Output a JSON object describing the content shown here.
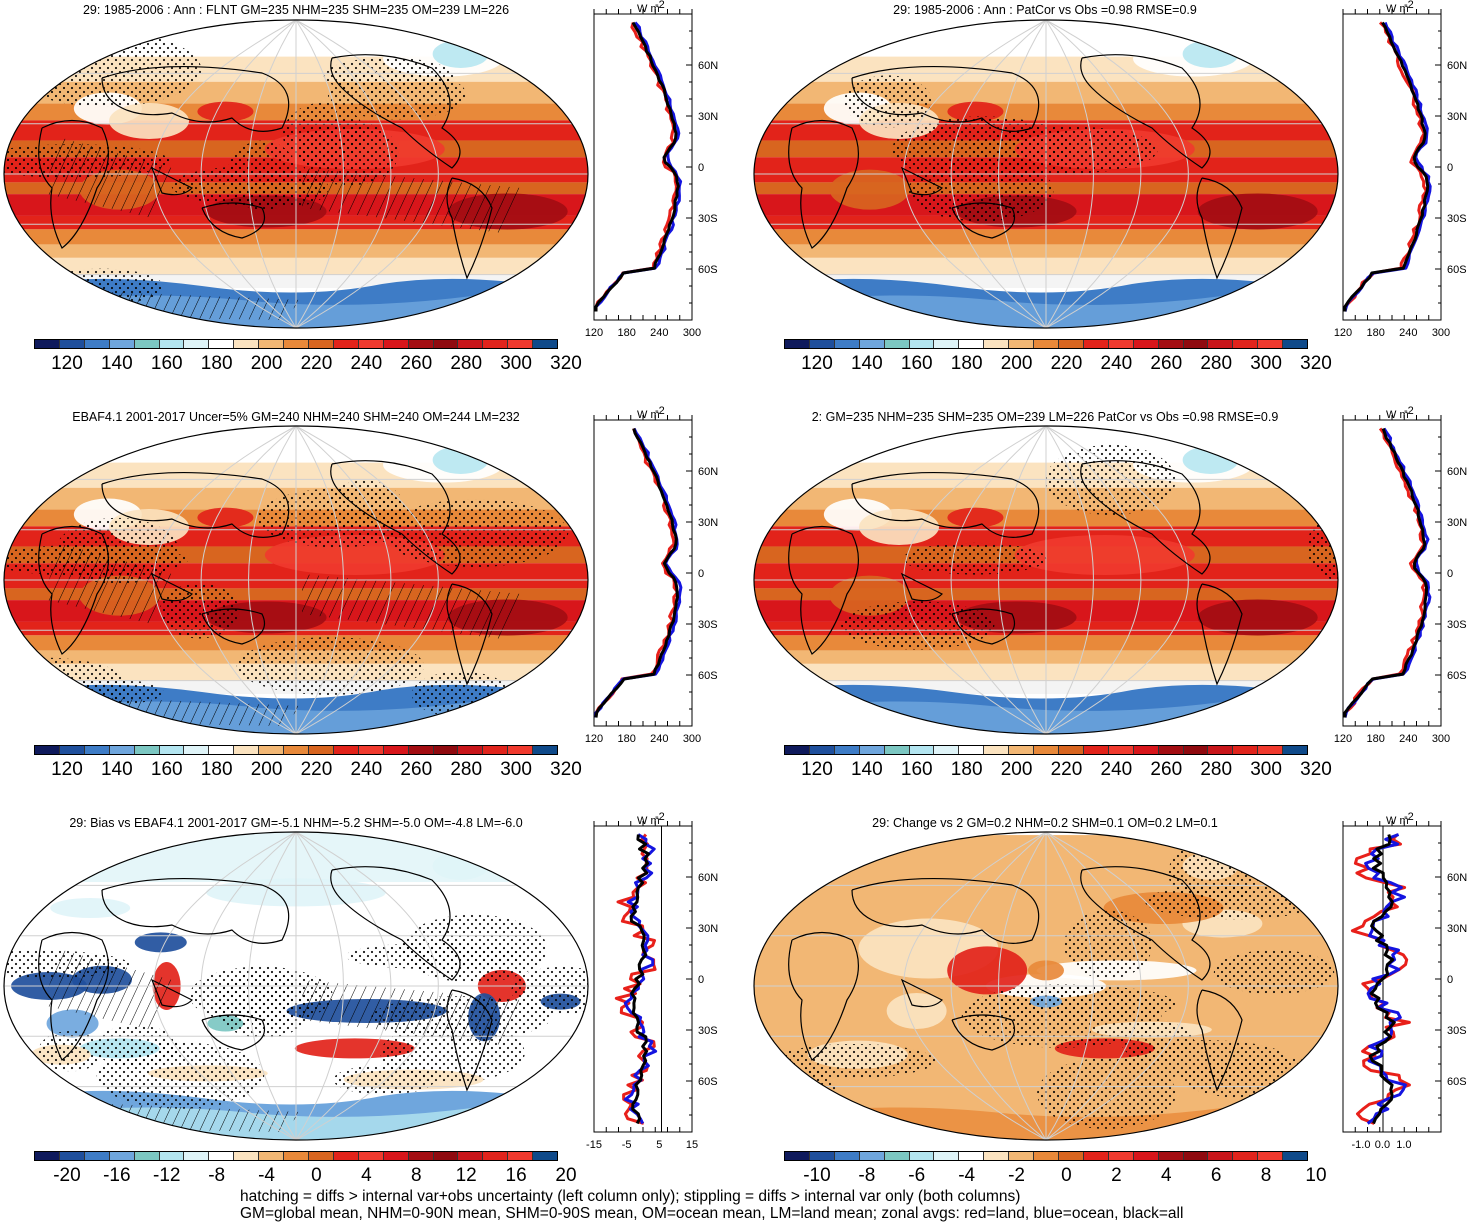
{
  "panels": [
    {
      "id": "p1",
      "title": "29: 1985-2006 : Ann : FLNT GM=235 NHM=235 SHM=235 OM=239 LM=226",
      "field": "absolute",
      "hatch": true
    },
    {
      "id": "p2",
      "title": "29: 1985-2006 : Ann : PatCor vs Obs =0.98 RMSE=0.9",
      "field": "absolute",
      "hatch": false
    },
    {
      "id": "p3",
      "title": "EBAF4.1 2001-2017 Uncer=5% GM=240 NHM=240 SHM=240 OM=244 LM=232",
      "field": "absolute",
      "hatch": true
    },
    {
      "id": "p4",
      "title": "2: GM=235 NHM=235 SHM=235 OM=239 LM=226 PatCor vs Obs =0.98 RMSE=0.9",
      "field": "absolute",
      "hatch": false
    },
    {
      "id": "p5",
      "title": "29: Bias vs EBAF4.1 2001-2017 GM=-5.1 NHM=-5.2 SHM=-5.0 OM=-4.8 LM=-6.0",
      "field": "bias",
      "hatch": true
    },
    {
      "id": "p6",
      "title": "29: Change vs 2 GM=0.2 NHM=0.2 SHM=0.1 OM=0.2 LM=0.1",
      "field": "change",
      "hatch": false
    }
  ],
  "zonal": {
    "units": "W m",
    "units_sup": "-2",
    "lat_labels": [
      "60N",
      "30N",
      "0",
      "30S",
      "60S"
    ],
    "abs_xticks": [
      "120",
      "180",
      "240",
      "300"
    ],
    "bias_xticks": [
      "-15",
      "-5",
      "5",
      "15"
    ],
    "change_xticks": [
      "-1.0",
      "0.0",
      "1.0"
    ]
  },
  "colorbars": {
    "absolute": {
      "labels": [
        "120",
        "140",
        "160",
        "180",
        "200",
        "220",
        "240",
        "260",
        "280",
        "300",
        "320"
      ],
      "colors": [
        "#0f1a5c",
        "#1f4f9c",
        "#3e7cc6",
        "#6fa6dd",
        "#7cc7c2",
        "#b3e5f0",
        "#dff4f8",
        "#ffffff",
        "#fbe3c0",
        "#f2b774",
        "#e8893a",
        "#d8651f",
        "#e2231a",
        "#f03a2e",
        "#d8161b",
        "#a30d12",
        "#8f0a0f",
        "#c8151a",
        "#e0241c",
        "#f0392d",
        "#0f4a8a"
      ]
    },
    "bias": {
      "labels": [
        "-20",
        "-16",
        "-12",
        "-8",
        "-4",
        "0",
        "4",
        "8",
        "12",
        "16",
        "20"
      ],
      "colors": [
        "#0f1a5c",
        "#1f4f9c",
        "#3e7cc6",
        "#6fa6dd",
        "#7cc7c2",
        "#b3e5f0",
        "#dff4f8",
        "#ffffff",
        "#fbe3c0",
        "#f2b774",
        "#e8893a",
        "#d8651f",
        "#e2231a",
        "#f03a2e",
        "#d8161b",
        "#a30d12",
        "#8f0a0f",
        "#c8151a",
        "#e0241c",
        "#f0392d",
        "#0f4a8a"
      ]
    },
    "change": {
      "labels": [
        "-10",
        "-8",
        "-6",
        "-4",
        "-2",
        "0",
        "2",
        "4",
        "6",
        "8",
        "10"
      ],
      "colors": [
        "#0f1a5c",
        "#1f4f9c",
        "#3e7cc6",
        "#6fa6dd",
        "#7cc7c2",
        "#b3e5f0",
        "#dff4f8",
        "#ffffff",
        "#fbe3c0",
        "#f2b774",
        "#e8893a",
        "#d8651f",
        "#e2231a",
        "#f03a2e",
        "#d8161b",
        "#a30d12",
        "#8f0a0f",
        "#c8151a",
        "#e0241c",
        "#f0392d",
        "#0f4a8a"
      ]
    }
  },
  "footer": {
    "line1": "hatching = diffs > internal var+obs uncertainty (left column only); stippling = diffs > internal var only (both columns)",
    "line2": "GM=global mean, NHM=0-90N mean, SHM=0-90S mean, OM=ocean mean, LM=land mean; zonal avgs: red=land, blue=ocean, black=all"
  },
  "line_colors": {
    "land": "#e8201a",
    "ocean": "#1414e0",
    "all": "#000000"
  }
}
